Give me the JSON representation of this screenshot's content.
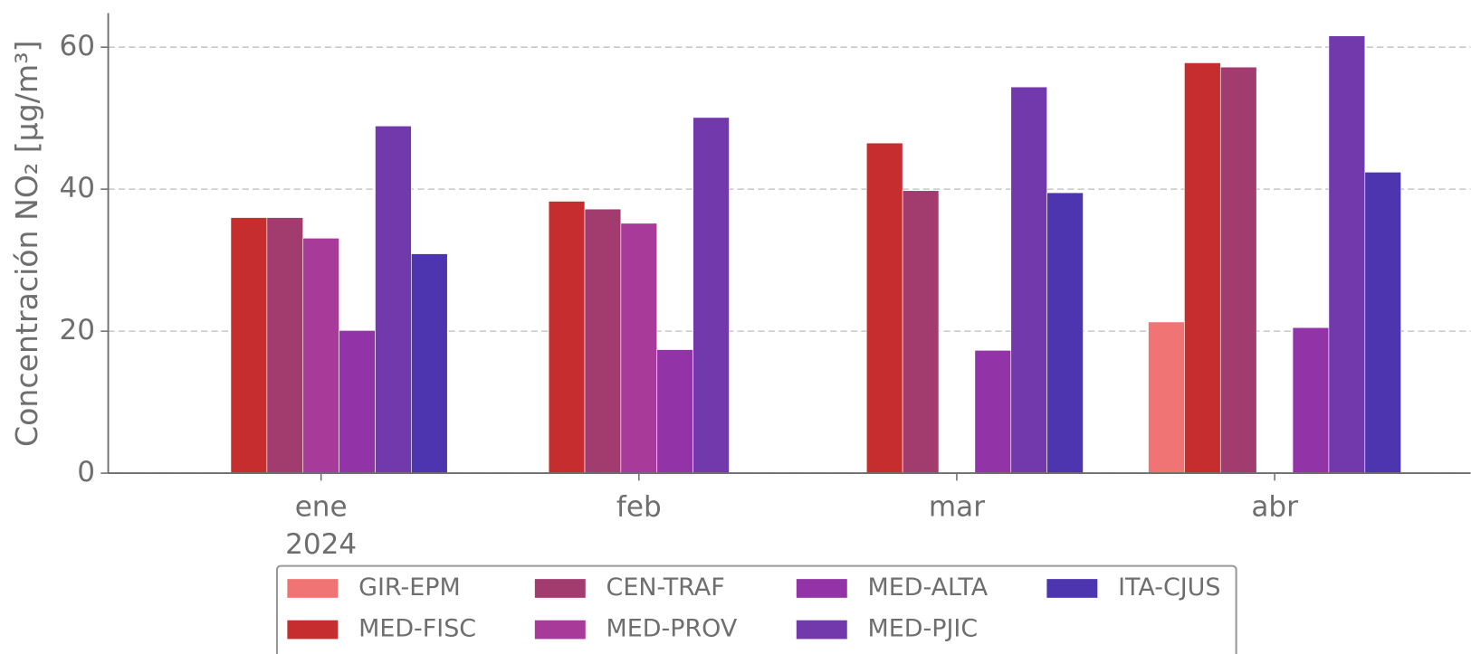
{
  "chart_data": {
    "type": "bar",
    "ylabel": "Concentración NO₂ [μg/m³]",
    "categories": [
      "ene",
      "feb",
      "mar",
      "abr"
    ],
    "year_label": "2024",
    "series": [
      {
        "name": "GIR-EPM",
        "color": "#f07474",
        "values": [
          null,
          null,
          null,
          21.3
        ]
      },
      {
        "name": "MED-FISC",
        "color": "#c62d2f",
        "values": [
          36,
          38.3,
          46.5,
          57.8
        ]
      },
      {
        "name": "CEN-TRAF",
        "color": "#a23b6e",
        "values": [
          36,
          37.2,
          39.8,
          57.2
        ]
      },
      {
        "name": "MED-PROV",
        "color": "#a83a9a",
        "values": [
          33.1,
          35.2,
          null,
          null
        ]
      },
      {
        "name": "MED-ALTA",
        "color": "#9333a8",
        "values": [
          20.1,
          17.4,
          17.3,
          20.5
        ]
      },
      {
        "name": "MED-PJIC",
        "color": "#7239ad",
        "values": [
          48.9,
          50.1,
          54.4,
          61.6
        ]
      },
      {
        "name": "ITA-CJUS",
        "color": "#4d35b0",
        "values": [
          30.9,
          null,
          39.5,
          42.4
        ]
      }
    ],
    "ylim": [
      0,
      64.8
    ],
    "yticks": [
      0,
      20,
      40,
      60
    ],
    "grid": true,
    "legend": "bottom"
  }
}
